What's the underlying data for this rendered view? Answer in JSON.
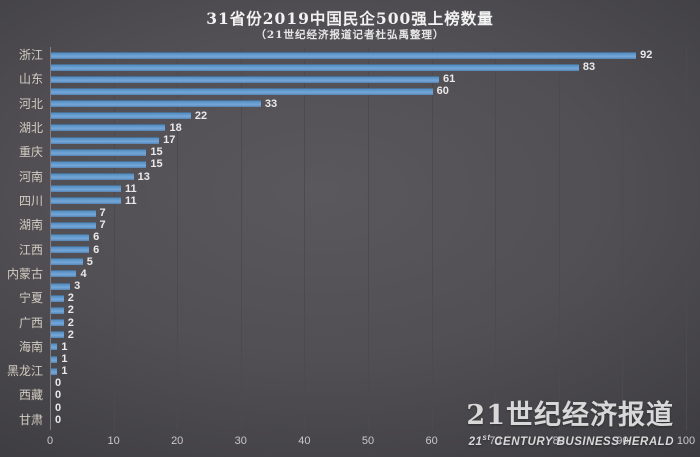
{
  "header": {
    "title": "31省份2019中国民企500强上榜数量",
    "subtitle": "（21世纪经济报道记者杜弘禹整理）"
  },
  "chart_data": {
    "type": "bar",
    "orientation": "horizontal",
    "title": "31省份2019中国民企500强上榜数量",
    "subtitle": "（21世纪经济报道记者杜弘禹整理）",
    "categories": [
      "浙江",
      "",
      "山东",
      "",
      "河北",
      "",
      "湖北",
      "",
      "重庆",
      "",
      "河南",
      "",
      "四川",
      "",
      "湖南",
      "",
      "江西",
      "",
      "内蒙古",
      "",
      "宁夏",
      "",
      "广西",
      "",
      "海南",
      "",
      "黑龙江",
      "",
      "西藏",
      "",
      "甘肃"
    ],
    "values": [
      92,
      83,
      61,
      60,
      33,
      22,
      18,
      17,
      15,
      15,
      13,
      11,
      11,
      7,
      7,
      6,
      6,
      5,
      4,
      3,
      2,
      2,
      2,
      2,
      1,
      1,
      1,
      0,
      0,
      0,
      0
    ],
    "value_labels_visible": true,
    "xlabel": "",
    "ylabel": "",
    "xlim": [
      0,
      100
    ],
    "x_ticks": [
      0,
      10,
      20,
      30,
      40,
      50,
      60,
      70,
      80,
      90,
      100
    ],
    "grid": "vertical",
    "legend": "none",
    "bar_color": "#5b9bd5"
  },
  "watermark": {
    "cn": "21世纪经济报道",
    "en_prefix": "21",
    "en_sup": "st",
    "en_rest": " CENTURY BUSINESS HERALD"
  },
  "colors": {
    "background_center": "#57555a",
    "background_edge": "#242327",
    "bar": "#5b9bd5",
    "axis_line": "#807e84",
    "gridline": "#4c4a4f",
    "category_label": "#d2ccc2",
    "value_label": "#e9e9ea",
    "tick_label": "#c9c7cc",
    "title": "#f2f2f2",
    "watermark": "#d9d8d9"
  }
}
